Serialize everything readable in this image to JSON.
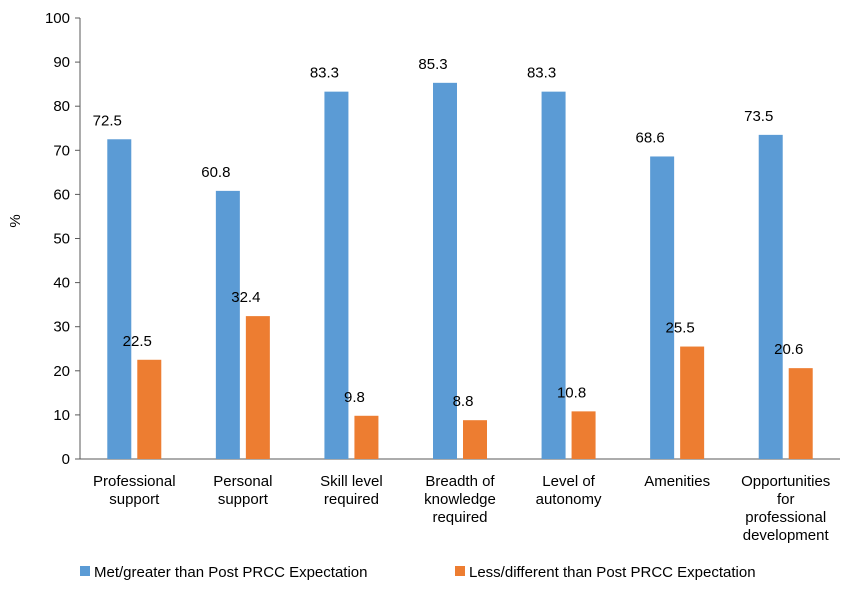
{
  "chart_data": {
    "type": "bar",
    "title": "",
    "xlabel": "",
    "ylabel": "%",
    "ylim": [
      0,
      100
    ],
    "yticks": [
      0,
      10,
      20,
      30,
      40,
      50,
      60,
      70,
      80,
      90,
      100
    ],
    "grid": false,
    "legend_position": "bottom",
    "categories": [
      [
        "Professional",
        "support"
      ],
      [
        "Personal",
        "support"
      ],
      [
        "Skill level",
        "required"
      ],
      [
        "Breadth of",
        "knowledge",
        "required"
      ],
      [
        "Level of",
        "autonomy"
      ],
      [
        "Amenities"
      ],
      [
        "Opportunities",
        "for",
        "professional",
        "development"
      ]
    ],
    "series": [
      {
        "name": "Met/greater than Post PRCC Expectation",
        "color": "#5B9BD5",
        "values": [
          72.5,
          60.8,
          83.3,
          85.3,
          83.3,
          68.6,
          73.5
        ]
      },
      {
        "name": "Less/different than Post PRCC Expectation",
        "color": "#ED7D31",
        "values": [
          22.5,
          32.4,
          9.8,
          8.8,
          10.8,
          25.5,
          20.6
        ]
      }
    ]
  }
}
